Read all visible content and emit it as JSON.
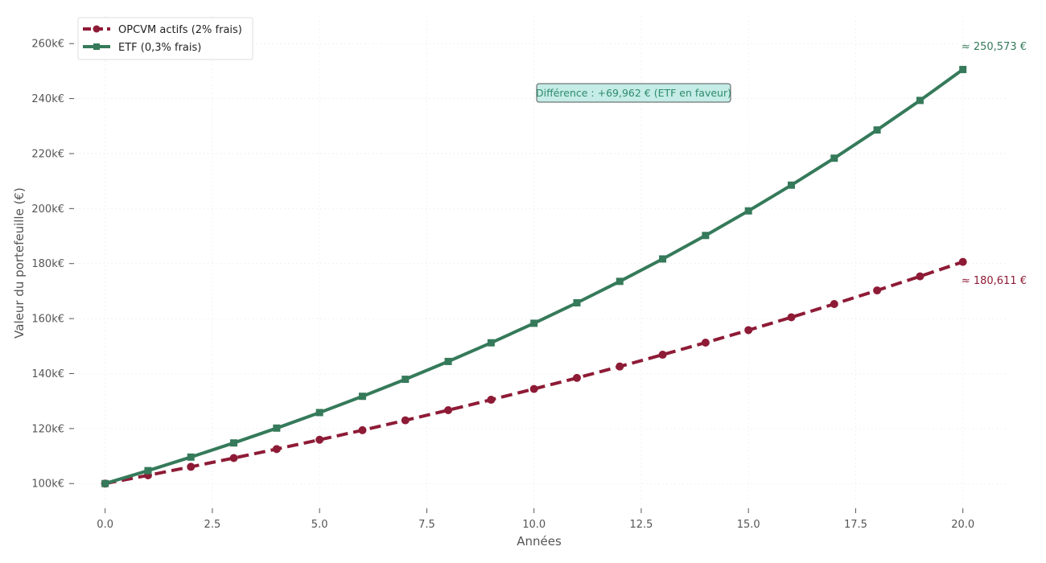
{
  "chart_data": {
    "type": "line",
    "title": "",
    "xlabel": "Années",
    "ylabel": "Valeur du portefeuille (€)",
    "xlim": [
      -0.8,
      21.0
    ],
    "ylim": [
      91000,
      270000
    ],
    "x_ticks": [
      0,
      2.5,
      5,
      7.5,
      10,
      12.5,
      15,
      17.5,
      20
    ],
    "x_tick_labels": [
      "0.0",
      "2.5",
      "5.0",
      "7.5",
      "10.0",
      "12.5",
      "15.0",
      "17.5",
      "20.0"
    ],
    "y_ticks": [
      100000,
      120000,
      140000,
      160000,
      180000,
      200000,
      220000,
      240000,
      260000
    ],
    "y_tick_labels": [
      "100k€",
      "120k€",
      "140k€",
      "160k€",
      "180k€",
      "200k€",
      "220k€",
      "240k€",
      "260k€"
    ],
    "grid": true,
    "legend_position": "top-left",
    "x": [
      0,
      1,
      2,
      3,
      4,
      5,
      6,
      7,
      8,
      9,
      10,
      11,
      12,
      13,
      14,
      15,
      16,
      17,
      18,
      19,
      20
    ],
    "series": [
      {
        "name": "OPCVM actifs (2% frais)",
        "color": "#8e1b36",
        "line_style": "dashed",
        "marker": "circle",
        "values": [
          100000,
          103000,
          106090,
          109273,
          112551,
          115927,
          119405,
          122987,
          126677,
          130477,
          134392,
          138423,
          142576,
          146853,
          151259,
          155797,
          160471,
          165285,
          170243,
          175351,
          180611
        ]
      },
      {
        "name": "ETF (0,3% frais)",
        "color": "#357a5a",
        "line_style": "solid",
        "marker": "square",
        "values": [
          100000,
          104700,
          109621,
          114773,
          120167,
          125815,
          131729,
          137920,
          144402,
          151189,
          158295,
          165735,
          173525,
          181680,
          190219,
          199160,
          208520,
          218321,
          228582,
          239325,
          250573
        ]
      }
    ],
    "annotations": {
      "opcvm_end": "≈ 180,611 €",
      "etf_end": "≈ 250,573 €",
      "difference": "Différence : +69,962 € (ETF en faveur)"
    },
    "colors": {
      "annotation_box_fill": "#c5ece6",
      "annotation_box_stroke": "#555555",
      "annotation_text": "#2e8b6e"
    }
  }
}
